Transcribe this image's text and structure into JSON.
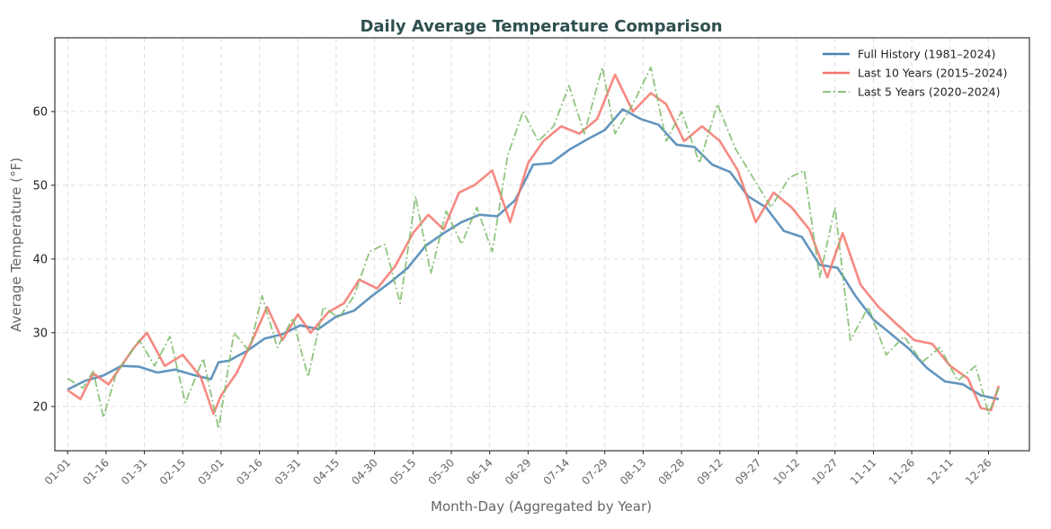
{
  "chart_data": {
    "type": "line",
    "title": "Daily Average Temperature Comparison",
    "xlabel": "Month-Day (Aggregated by Year)",
    "ylabel": "Average Temperature (°F)",
    "x_ticks": [
      "01-01",
      "01-16",
      "01-31",
      "02-15",
      "03-01",
      "03-16",
      "03-31",
      "04-15",
      "04-30",
      "05-15",
      "05-30",
      "06-14",
      "06-29",
      "07-14",
      "07-29",
      "08-13",
      "08-28",
      "09-12",
      "09-27",
      "10-12",
      "10-27",
      "11-11",
      "11-26",
      "12-11",
      "12-26"
    ],
    "y_ticks": [
      20,
      30,
      40,
      50,
      60
    ],
    "ylim": [
      14,
      70
    ],
    "x_day_range": [
      -5,
      376
    ],
    "grid": true,
    "legend_position": "top-right",
    "series": [
      {
        "name": "Full History (1981–2024)",
        "color": "#4682b4",
        "line_style": "solid",
        "x_day": [
          0,
          7,
          14,
          21,
          28,
          35,
          42,
          49,
          56,
          59,
          63,
          70,
          77,
          84,
          91,
          98,
          105,
          112,
          119,
          126,
          133,
          140,
          147,
          154,
          161,
          168,
          175,
          182,
          189,
          196,
          203,
          210,
          217,
          224,
          231,
          238,
          245,
          252,
          259,
          266,
          273,
          280,
          287,
          294,
          301,
          308,
          315,
          322,
          329,
          336,
          343,
          350,
          357,
          364
        ],
        "values": [
          22.3,
          23.5,
          24.2,
          25.5,
          25.4,
          24.6,
          25.0,
          24.3,
          23.7,
          26.0,
          26.2,
          27.5,
          29.2,
          29.8,
          31.0,
          30.5,
          32.2,
          33.0,
          35.0,
          36.8,
          38.8,
          41.8,
          43.5,
          45.0,
          46.0,
          45.8,
          48.0,
          52.8,
          53.0,
          54.8,
          56.2,
          57.5,
          60.3,
          59.0,
          58.2,
          55.5,
          55.2,
          52.8,
          51.8,
          48.5,
          47.0,
          43.8,
          43.0,
          39.2,
          38.8,
          35.0,
          31.8,
          29.8,
          27.8,
          25.2,
          23.4,
          23.0,
          21.5,
          21.0
        ]
      },
      {
        "name": "Last 10 Years (2015–2024)",
        "color": "#f4766c",
        "line_style": "solid",
        "x_day": [
          0,
          5,
          10,
          16,
          22,
          26,
          31,
          38,
          45,
          52,
          57,
          60,
          66,
          72,
          78,
          84,
          90,
          95,
          102,
          108,
          114,
          121,
          128,
          135,
          141,
          147,
          153,
          159,
          166,
          173,
          180,
          186,
          193,
          200,
          207,
          214,
          221,
          228,
          234,
          241,
          248,
          255,
          262,
          269,
          276,
          283,
          290,
          297,
          303,
          310,
          317,
          324,
          331,
          338,
          345,
          352,
          357,
          361,
          364
        ],
        "values": [
          22.2,
          21.0,
          24.5,
          23.0,
          26.0,
          28.0,
          30.0,
          25.5,
          27.0,
          24.0,
          19.0,
          21.5,
          24.5,
          28.8,
          33.5,
          29.0,
          32.5,
          30.0,
          32.8,
          34.0,
          37.2,
          36.0,
          39.0,
          43.5,
          46.0,
          44.0,
          49.0,
          50.0,
          52.0,
          45.0,
          53.0,
          56.0,
          58.0,
          57.0,
          59.0,
          65.0,
          60.0,
          62.5,
          61.0,
          56.0,
          58.0,
          56.0,
          52.0,
          45.0,
          49.0,
          47.0,
          44.0,
          37.5,
          43.5,
          36.5,
          33.5,
          31.2,
          29.0,
          28.5,
          25.5,
          23.8,
          19.8,
          19.5,
          22.8
        ]
      },
      {
        "name": "Last 5 Years (2020–2024)",
        "color": "#7dbb6a",
        "line_style": "dashdot",
        "x_day": [
          0,
          6,
          10,
          14,
          19,
          23,
          28,
          34,
          40,
          46,
          53,
          59,
          65,
          71,
          76,
          82,
          88,
          94,
          100,
          106,
          112,
          118,
          124,
          130,
          136,
          142,
          148,
          154,
          160,
          166,
          172,
          178,
          184,
          190,
          196,
          202,
          209,
          214,
          221,
          228,
          234,
          240,
          247,
          254,
          261,
          268,
          275,
          282,
          288,
          294,
          300,
          306,
          313,
          320,
          327,
          334,
          341,
          348,
          355,
          360,
          364
        ],
        "values": [
          23.8,
          22.5,
          24.8,
          18.5,
          24.5,
          26.5,
          29.0,
          25.5,
          29.5,
          20.5,
          26.5,
          17.0,
          30.0,
          27.5,
          35.0,
          28.0,
          32.0,
          24.0,
          33.5,
          32.0,
          35.0,
          41.0,
          42.0,
          34.0,
          48.5,
          38.0,
          46.5,
          42.0,
          47.0,
          41.0,
          54.0,
          60.0,
          56.0,
          58.0,
          63.5,
          57.0,
          66.0,
          57.0,
          61.0,
          66.0,
          56.0,
          60.0,
          53.0,
          61.0,
          55.0,
          51.0,
          47.0,
          51.0,
          52.0,
          37.5,
          47.0,
          29.0,
          33.5,
          27.0,
          29.5,
          26.0,
          28.0,
          23.5,
          25.5,
          19.0,
          22.5
        ]
      }
    ]
  }
}
